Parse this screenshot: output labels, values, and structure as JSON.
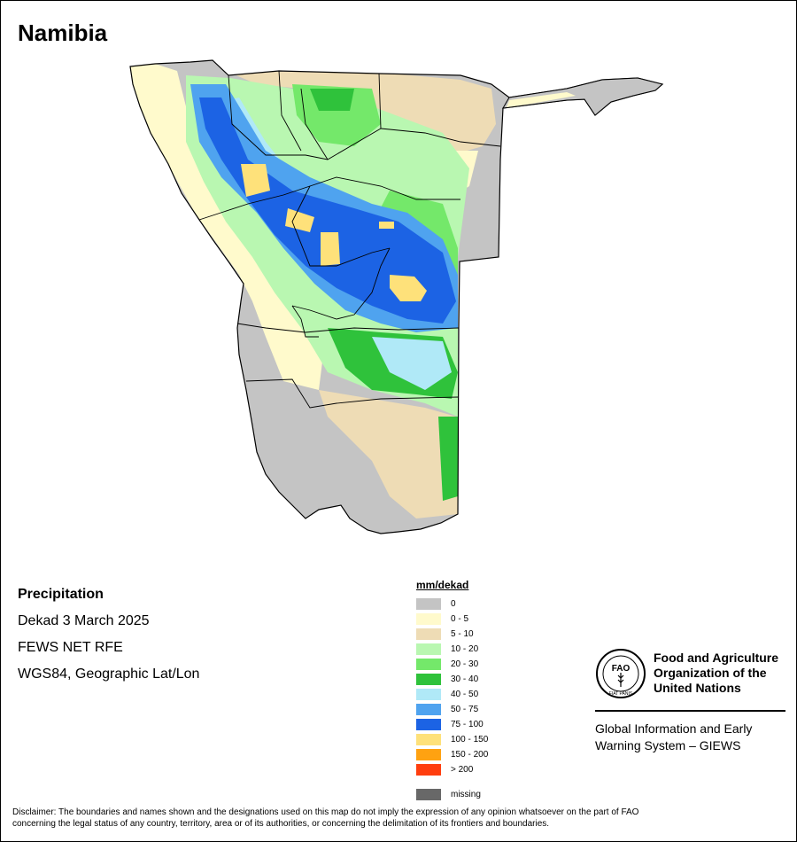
{
  "map": {
    "title": "Namibia"
  },
  "info": {
    "variable": "Precipitation",
    "period": "Dekad 3 March 2025",
    "source": "FEWS NET RFE",
    "projection": "WGS84, Geographic Lat/Lon"
  },
  "legend": {
    "unit": "mm/dekad",
    "classes": [
      {
        "label": "0",
        "color": "#c4c4c4"
      },
      {
        "label": "0 - 5",
        "color": "#fffacc"
      },
      {
        "label": "5 - 10",
        "color": "#eedcb5"
      },
      {
        "label": "10 - 20",
        "color": "#b9f7b1"
      },
      {
        "label": "20 - 30",
        "color": "#74e86a"
      },
      {
        "label": "30 - 40",
        "color": "#2fc23b"
      },
      {
        "label": "40 - 50",
        "color": "#b0e9f7"
      },
      {
        "label": "50 - 75",
        "color": "#4fa3ef"
      },
      {
        "label": "75 - 100",
        "color": "#1c63e4"
      },
      {
        "label": "100 - 150",
        "color": "#fee17a"
      },
      {
        "label": "150 - 200",
        "color": "#ffa211"
      },
      {
        "label": "> 200",
        "color": "#ff3e0e"
      }
    ],
    "missing": {
      "label": "missing",
      "color": "#686868"
    }
  },
  "logo": {
    "org_name_line1": "Food and Agriculture",
    "org_name_line2": "Organization of the",
    "org_name_line3": "United Nations",
    "emblem_text": "FAO",
    "emblem_motto": "FIAT PANIS",
    "system_line1": "Global Information and Early",
    "system_line2": "Warning System – GIEWS"
  },
  "disclaimer": {
    "line1": "Disclaimer: The boundaries and names shown and the designations used on this map do not imply the expression of any opinion whatsoever on the part of FAO",
    "line2": "concerning the legal status of any country, territory, area or of its authorities, or concerning the delimitation of its frontiers and boundaries."
  }
}
